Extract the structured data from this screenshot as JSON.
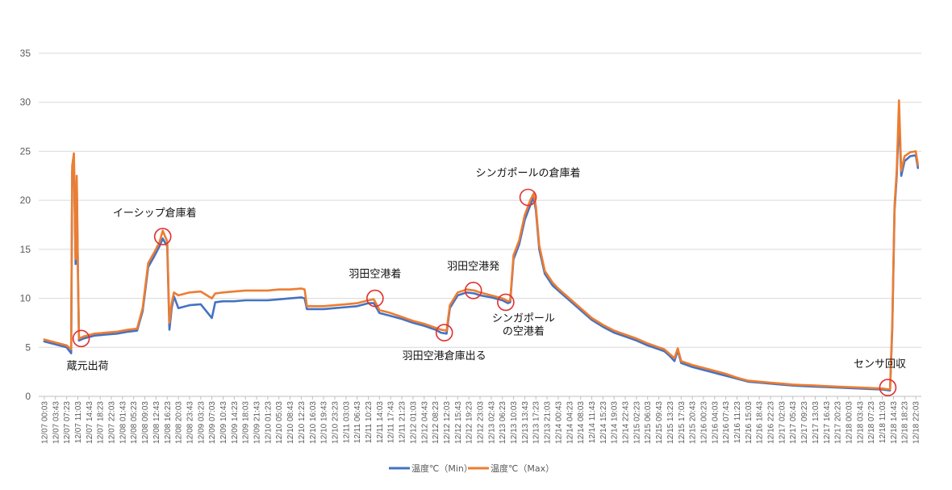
{
  "chart_data": {
    "type": "line",
    "title": "",
    "xlabel": "",
    "ylabel": "",
    "ylim": [
      0,
      35
    ],
    "yticks": [
      0,
      5,
      10,
      15,
      20,
      25,
      30,
      35
    ],
    "grid": true,
    "legend_position": "bottom",
    "x_tick_labels": [
      "12/07 00:03",
      "12/07 03:43",
      "12/07 07:23",
      "12/07 11:03",
      "12/07 14:43",
      "12/07 18:23",
      "12/07 22:03",
      "12/08 01:43",
      "12/08 05:23",
      "12/08 09:03",
      "12/08 12:43",
      "12/08 16:23",
      "12/08 20:03",
      "12/08 23:43",
      "12/09 03:23",
      "12/09 07:03",
      "12/09 10:43",
      "12/09 14:23",
      "12/09 18:03",
      "12/09 21:43",
      "12/10 01:23",
      "12/10 05:03",
      "12/10 08:43",
      "12/10 12:23",
      "12/10 16:03",
      "12/10 19:43",
      "12/10 23:23",
      "12/11 03:03",
      "12/11 06:43",
      "12/11 10:23",
      "12/11 14:03",
      "12/11 17:43",
      "12/11 21:23",
      "12/12 01:03",
      "12/12 04:43",
      "12/12 08:23",
      "12/12 12:03",
      "12/12 15:43",
      "12/12 19:23",
      "12/12 23:03",
      "12/13 02:43",
      "12/13 06:23",
      "12/13 10:03",
      "12/13 13:43",
      "12/13 17:23",
      "12/13 21:03",
      "12/14 00:43",
      "12/14 04:23",
      "12/14 08:03",
      "12/14 11:43",
      "12/14 15:23",
      "12/14 19:03",
      "12/14 22:43",
      "12/15 02:23",
      "12/15 06:03",
      "12/15 09:43",
      "12/15 13:23",
      "12/15 17:03",
      "12/15 20:43",
      "12/16 00:23",
      "12/16 04:03",
      "12/16 07:43",
      "12/16 11:23",
      "12/16 15:03",
      "12/16 18:43",
      "12/16 22:23",
      "12/17 02:03",
      "12/17 05:43",
      "12/17 09:23",
      "12/17 13:03",
      "12/17 16:43",
      "12/17 20:23",
      "12/18 00:03",
      "12/18 03:43",
      "12/18 07:23",
      "12/18 11:03",
      "12/18 14:43",
      "12/18 18:23",
      "12/18 22:03"
    ],
    "series": [
      {
        "name": "温度℃（Min）",
        "color": "#4472C4",
        "points": [
          [
            0,
            5.6
          ],
          [
            1,
            5.3
          ],
          [
            2,
            5.0
          ],
          [
            2.4,
            4.4
          ],
          [
            2.5,
            23.0
          ],
          [
            2.65,
            24.3
          ],
          [
            2.8,
            13.5
          ],
          [
            2.9,
            22.0
          ],
          [
            3.0,
            13.0
          ],
          [
            3.1,
            5.7
          ],
          [
            3.5,
            5.9
          ],
          [
            4.5,
            6.2
          ],
          [
            5.5,
            6.3
          ],
          [
            6.5,
            6.4
          ],
          [
            7.5,
            6.6
          ],
          [
            8.3,
            6.7
          ],
          [
            8.8,
            8.7
          ],
          [
            9.3,
            13.2
          ],
          [
            9.8,
            14.2
          ],
          [
            10.3,
            15.3
          ],
          [
            10.6,
            16.1
          ],
          [
            11.0,
            15.3
          ],
          [
            11.2,
            6.8
          ],
          [
            11.4,
            9.0
          ],
          [
            11.6,
            10.2
          ],
          [
            12.0,
            9.0
          ],
          [
            13.0,
            9.3
          ],
          [
            14.0,
            9.4
          ],
          [
            15.0,
            8.0
          ],
          [
            15.3,
            9.6
          ],
          [
            16.0,
            9.7
          ],
          [
            17.0,
            9.7
          ],
          [
            18.0,
            9.8
          ],
          [
            19.0,
            9.8
          ],
          [
            20.0,
            9.8
          ],
          [
            21.0,
            9.9
          ],
          [
            22.0,
            10.0
          ],
          [
            23.0,
            10.1
          ],
          [
            23.3,
            10.0
          ],
          [
            23.5,
            8.9
          ],
          [
            25.0,
            8.9
          ],
          [
            26.0,
            9.0
          ],
          [
            27.0,
            9.1
          ],
          [
            28.0,
            9.2
          ],
          [
            29.0,
            9.5
          ],
          [
            29.5,
            9.5
          ],
          [
            30.0,
            8.5
          ],
          [
            31.0,
            8.2
          ],
          [
            32.0,
            7.9
          ],
          [
            33.0,
            7.5
          ],
          [
            34.0,
            7.2
          ],
          [
            35.0,
            6.8
          ],
          [
            35.5,
            6.5
          ],
          [
            36.0,
            6.4
          ],
          [
            36.3,
            9.0
          ],
          [
            37.0,
            10.3
          ],
          [
            37.8,
            10.6
          ],
          [
            38.5,
            10.5
          ],
          [
            39.0,
            10.3
          ],
          [
            40.0,
            10.1
          ],
          [
            41.0,
            9.8
          ],
          [
            41.5,
            9.5
          ],
          [
            41.7,
            9.6
          ],
          [
            42.0,
            14.0
          ],
          [
            42.5,
            15.5
          ],
          [
            43.0,
            18.0
          ],
          [
            43.5,
            19.5
          ],
          [
            43.8,
            20.3
          ],
          [
            44.0,
            19.0
          ],
          [
            44.3,
            15.0
          ],
          [
            44.8,
            12.5
          ],
          [
            45.5,
            11.3
          ],
          [
            46.0,
            10.8
          ],
          [
            47.0,
            9.8
          ],
          [
            48.0,
            8.8
          ],
          [
            49.0,
            7.8
          ],
          [
            50.0,
            7.1
          ],
          [
            51.0,
            6.5
          ],
          [
            52.0,
            6.1
          ],
          [
            53.0,
            5.7
          ],
          [
            54.0,
            5.2
          ],
          [
            55.0,
            4.8
          ],
          [
            55.5,
            4.6
          ],
          [
            56.0,
            4.1
          ],
          [
            56.4,
            3.6
          ],
          [
            56.7,
            4.7
          ],
          [
            57.0,
            3.4
          ],
          [
            58.0,
            3.0
          ],
          [
            59.0,
            2.7
          ],
          [
            60.0,
            2.4
          ],
          [
            61.0,
            2.1
          ],
          [
            62.0,
            1.8
          ],
          [
            63.0,
            1.5
          ],
          [
            64.0,
            1.4
          ],
          [
            65.0,
            1.3
          ],
          [
            66.0,
            1.2
          ],
          [
            67.0,
            1.1
          ],
          [
            68.0,
            1.05
          ],
          [
            69.0,
            1.0
          ],
          [
            70.0,
            0.95
          ],
          [
            71.0,
            0.9
          ],
          [
            72.0,
            0.85
          ],
          [
            73.0,
            0.8
          ],
          [
            74.0,
            0.75
          ],
          [
            75.0,
            0.7
          ],
          [
            75.7,
            0.6
          ],
          [
            75.9,
            7.0
          ],
          [
            76.1,
            19.0
          ],
          [
            76.3,
            22.5
          ],
          [
            76.5,
            28.5
          ],
          [
            76.7,
            22.5
          ],
          [
            77.0,
            24.0
          ],
          [
            77.5,
            24.5
          ],
          [
            78.0,
            24.6
          ],
          [
            78.2,
            23.3
          ]
        ]
      },
      {
        "name": "温度℃（Max）",
        "color": "#ED7D31",
        "points": [
          [
            0,
            5.8
          ],
          [
            1,
            5.5
          ],
          [
            2,
            5.2
          ],
          [
            2.4,
            4.8
          ],
          [
            2.5,
            23.5
          ],
          [
            2.65,
            24.8
          ],
          [
            2.8,
            14.0
          ],
          [
            2.9,
            22.5
          ],
          [
            3.0,
            13.5
          ],
          [
            3.1,
            5.9
          ],
          [
            3.5,
            6.1
          ],
          [
            4.5,
            6.4
          ],
          [
            5.5,
            6.5
          ],
          [
            6.5,
            6.6
          ],
          [
            7.5,
            6.8
          ],
          [
            8.3,
            6.9
          ],
          [
            8.8,
            9.0
          ],
          [
            9.3,
            13.6
          ],
          [
            9.8,
            14.6
          ],
          [
            10.3,
            15.7
          ],
          [
            10.6,
            16.9
          ],
          [
            11.0,
            15.8
          ],
          [
            11.2,
            7.5
          ],
          [
            11.4,
            9.5
          ],
          [
            11.6,
            10.6
          ],
          [
            12.0,
            10.3
          ],
          [
            13.0,
            10.6
          ],
          [
            14.0,
            10.7
          ],
          [
            15.0,
            10.0
          ],
          [
            15.3,
            10.5
          ],
          [
            16.0,
            10.6
          ],
          [
            17.0,
            10.7
          ],
          [
            18.0,
            10.8
          ],
          [
            19.0,
            10.8
          ],
          [
            20.0,
            10.8
          ],
          [
            21.0,
            10.9
          ],
          [
            22.0,
            10.9
          ],
          [
            23.0,
            11.0
          ],
          [
            23.3,
            10.9
          ],
          [
            23.5,
            9.2
          ],
          [
            25.0,
            9.2
          ],
          [
            26.0,
            9.3
          ],
          [
            27.0,
            9.4
          ],
          [
            28.0,
            9.5
          ],
          [
            29.0,
            9.8
          ],
          [
            29.5,
            9.9
          ],
          [
            30.0,
            8.8
          ],
          [
            31.0,
            8.5
          ],
          [
            32.0,
            8.1
          ],
          [
            33.0,
            7.7
          ],
          [
            34.0,
            7.4
          ],
          [
            35.0,
            7.0
          ],
          [
            35.5,
            6.8
          ],
          [
            36.0,
            6.7
          ],
          [
            36.3,
            9.3
          ],
          [
            37.0,
            10.6
          ],
          [
            37.8,
            10.9
          ],
          [
            38.5,
            10.8
          ],
          [
            39.0,
            10.6
          ],
          [
            40.0,
            10.3
          ],
          [
            41.0,
            10.0
          ],
          [
            41.5,
            9.7
          ],
          [
            41.7,
            9.8
          ],
          [
            42.0,
            14.4
          ],
          [
            42.5,
            15.9
          ],
          [
            43.0,
            18.5
          ],
          [
            43.5,
            20.0
          ],
          [
            43.8,
            20.7
          ],
          [
            44.0,
            19.4
          ],
          [
            44.3,
            15.4
          ],
          [
            44.8,
            12.8
          ],
          [
            45.5,
            11.6
          ],
          [
            46.0,
            11.0
          ],
          [
            47.0,
            10.0
          ],
          [
            48.0,
            9.0
          ],
          [
            49.0,
            8.0
          ],
          [
            50.0,
            7.3
          ],
          [
            51.0,
            6.7
          ],
          [
            52.0,
            6.3
          ],
          [
            53.0,
            5.9
          ],
          [
            54.0,
            5.4
          ],
          [
            55.0,
            5.0
          ],
          [
            55.5,
            4.8
          ],
          [
            56.0,
            4.3
          ],
          [
            56.4,
            3.9
          ],
          [
            56.7,
            4.9
          ],
          [
            57.0,
            3.6
          ],
          [
            58.0,
            3.2
          ],
          [
            59.0,
            2.9
          ],
          [
            60.0,
            2.6
          ],
          [
            61.0,
            2.3
          ],
          [
            62.0,
            1.9
          ],
          [
            63.0,
            1.6
          ],
          [
            64.0,
            1.5
          ],
          [
            65.0,
            1.4
          ],
          [
            66.0,
            1.3
          ],
          [
            67.0,
            1.2
          ],
          [
            68.0,
            1.15
          ],
          [
            69.0,
            1.1
          ],
          [
            70.0,
            1.05
          ],
          [
            71.0,
            1.0
          ],
          [
            72.0,
            0.95
          ],
          [
            73.0,
            0.9
          ],
          [
            74.0,
            0.85
          ],
          [
            75.0,
            0.8
          ],
          [
            75.7,
            0.7
          ],
          [
            75.9,
            7.5
          ],
          [
            76.1,
            19.5
          ],
          [
            76.3,
            23.0
          ],
          [
            76.5,
            30.2
          ],
          [
            76.7,
            23.0
          ],
          [
            77.0,
            24.5
          ],
          [
            77.5,
            24.9
          ],
          [
            78.0,
            25.0
          ],
          [
            78.2,
            23.6
          ]
        ]
      }
    ],
    "annotations": [
      {
        "label": "蔵元出荷",
        "x": 3.3,
        "y": 5.9,
        "text_pos": "below"
      },
      {
        "label": "イーシップ倉庫着",
        "x": 10.6,
        "y": 16.3,
        "text_pos": "above-left"
      },
      {
        "label": "羽田空港着",
        "x": 29.6,
        "y": 10.0,
        "text_pos": "above"
      },
      {
        "label": "羽田空港倉庫出る",
        "x": 35.8,
        "y": 6.5,
        "text_pos": "below"
      },
      {
        "label": "羽田空港発",
        "x": 38.4,
        "y": 10.8,
        "text_pos": "above"
      },
      {
        "label": "シンガポール\nの空港着",
        "x": 41.3,
        "y": 9.6,
        "text_pos": "below-right"
      },
      {
        "label": "シンガポールの倉庫着",
        "x": 43.3,
        "y": 20.3,
        "text_pos": "above"
      },
      {
        "label": "センサ回収",
        "x": 75.5,
        "y": 0.9,
        "text_pos": "above-left"
      }
    ]
  }
}
